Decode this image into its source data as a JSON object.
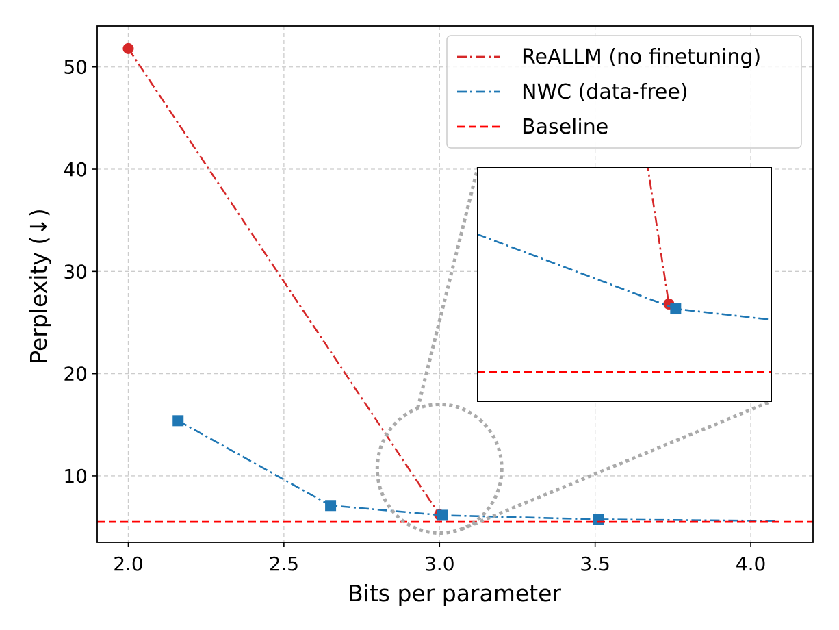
{
  "chart_data": {
    "type": "line",
    "xlabel": "Bits per parameter",
    "ylabel": "Perplexity (↓)",
    "xlim": [
      1.9,
      4.2
    ],
    "ylim": [
      3.5,
      54
    ],
    "xticks": [
      2.0,
      2.5,
      3.0,
      3.5,
      4.0
    ],
    "xtick_labels": [
      "2.0",
      "2.5",
      "3.0",
      "3.5",
      "4.0"
    ],
    "yticks": [
      10,
      20,
      30,
      40,
      50
    ],
    "ytick_labels": [
      "10",
      "20",
      "30",
      "40",
      "50"
    ],
    "grid": true,
    "legend_position": "top-right",
    "series": [
      {
        "name": "ReALLM (no finetuning)",
        "color": "#d62728",
        "linestyle": "dashdot",
        "marker": "circle",
        "x": [
          2.0,
          3.0
        ],
        "y": [
          51.8,
          6.2
        ]
      },
      {
        "name": "NWC (data-free)",
        "color": "#1f77b4",
        "linestyle": "dashdot",
        "marker": "square",
        "x": [
          2.16,
          2.65,
          3.01,
          3.51,
          4.08
        ],
        "y": [
          15.4,
          7.1,
          6.15,
          5.75,
          5.6
        ],
        "marker_mask": [
          true,
          true,
          true,
          true,
          false
        ]
      },
      {
        "name": "Baseline",
        "color": "#ff0000",
        "linestyle": "dashed",
        "marker": "none",
        "y_constant": 5.5
      }
    ],
    "inset": {
      "description": "zoom",
      "xlim": [
        2.72,
        3.15
      ],
      "ylim": [
        5.2,
        7.6
      ],
      "highlight_center": [
        3.0,
        10.7
      ],
      "highlight_radius_data": [
        0.2,
        6.3
      ]
    }
  }
}
